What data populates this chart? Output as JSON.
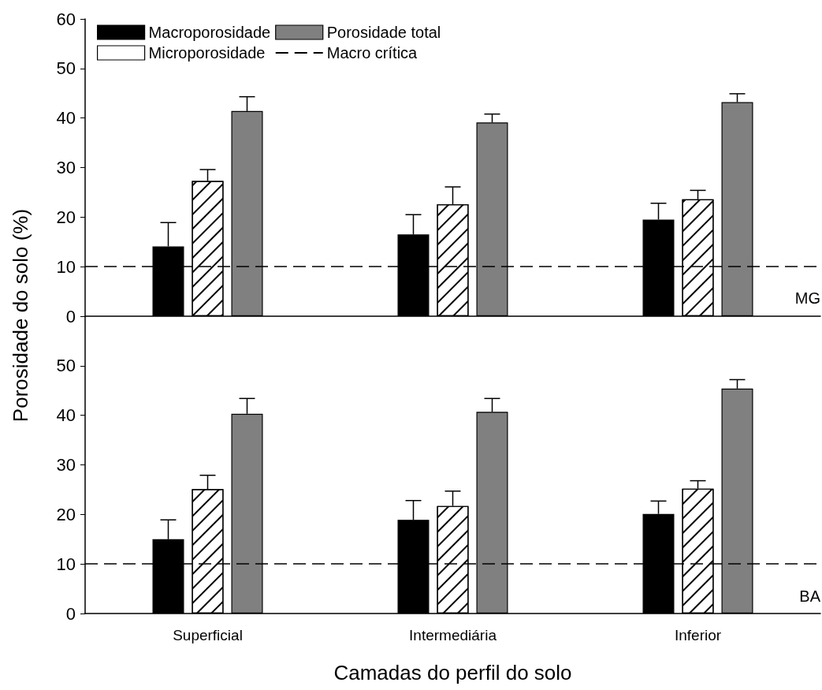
{
  "chart_data": [
    {
      "type": "bar",
      "ylabel": "Porosidade do solo (%)",
      "categories": [
        null,
        null,
        null
      ],
      "series": [
        {
          "name": "Macroporosidade",
          "color": "#000000",
          "values": [
            14.1,
            16.5,
            19.5
          ],
          "errors": [
            [
              14.1,
              18.9
            ],
            [
              16.5,
              20.5
            ],
            [
              19.5,
              22.8
            ]
          ]
        },
        {
          "name": "Microporosidade",
          "color": "#ffffff",
          "values": [
            27.3,
            22.6,
            23.6
          ],
          "errors": [
            [
              27.3,
              29.6
            ],
            [
              22.6,
              26.1
            ],
            [
              23.6,
              25.4
            ]
          ]
        },
        {
          "name": "Porosidade total",
          "color": "#808080",
          "values": [
            41.4,
            39.1,
            43.2
          ],
          "errors": [
            [
              41.4,
              44.3
            ],
            [
              39.1,
              40.8
            ],
            [
              43.2,
              44.9
            ]
          ]
        }
      ],
      "ylim": [
        0,
        60
      ],
      "yticks": [
        0,
        10,
        20,
        30,
        40,
        50,
        60
      ],
      "tick_labels": "y",
      "legend": "top left",
      "ref_lines": [
        {
          "axis": "y",
          "value": 10,
          "label": "Macro crítica",
          "color": "#000000",
          "line_style": "dashed"
        }
      ],
      "annotations": [
        "MG"
      ]
    },
    {
      "type": "bar",
      "xlabel": "Camadas do perfil do solo",
      "categories": [
        "Superficial",
        "Intermediária",
        "Inferior"
      ],
      "series": [
        {
          "color": "#000000",
          "values": [
            15,
            18.9,
            20.1
          ],
          "errors": [
            [
              15,
              18.9
            ],
            [
              18.9,
              22.8
            ],
            [
              20.1,
              22.7
            ]
          ]
        },
        {
          "color": "#ffffff",
          "values": [
            25.1,
            21.7,
            25.2
          ],
          "errors": [
            [
              25.1,
              27.9
            ],
            [
              21.7,
              24.7
            ],
            [
              25.2,
              26.8
            ]
          ]
        },
        {
          "color": "#808080",
          "values": [
            40.3,
            40.7,
            45.4
          ],
          "errors": [
            [
              40.3,
              43.4
            ],
            [
              40.7,
              43.4
            ],
            [
              45.4,
              47.2
            ]
          ]
        }
      ],
      "ylim": [
        0,
        60
      ],
      "yticks": [
        0,
        10,
        20,
        30,
        40,
        50
      ],
      "ref_lines": [
        {
          "axis": "y",
          "value": 10,
          "color": "#000000",
          "line_style": "dashed"
        }
      ],
      "annotations": [
        "BA"
      ]
    }
  ]
}
